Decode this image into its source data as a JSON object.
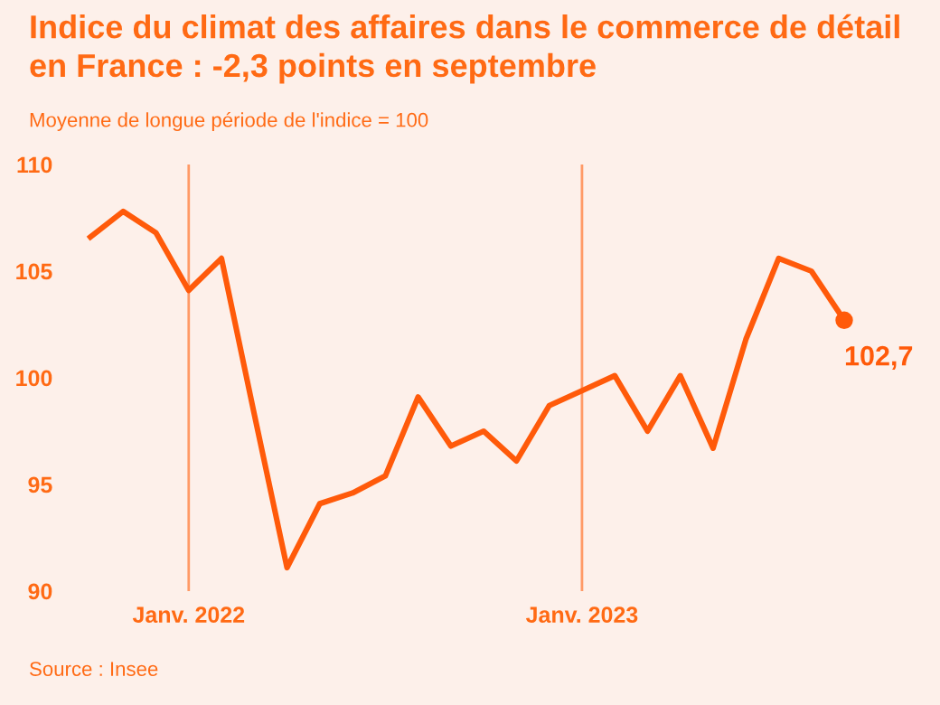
{
  "chart_data": {
    "type": "line",
    "title": "Indice du climat des affaires dans le commerce de détail en France : -2,3 points en septembre",
    "subtitle": "Moyenne de longue période de l'indice = 100",
    "categories": [
      null,
      null,
      null,
      "Janv. 2022",
      null,
      null,
      null,
      null,
      null,
      null,
      null,
      null,
      null,
      null,
      null,
      "Janv. 2023",
      null,
      null,
      null,
      null,
      null,
      null,
      null,
      null
    ],
    "series": [
      {
        "color": "#ff5a0a",
        "values": [
          106.6,
          107.8,
          106.8,
          104.1,
          105.6,
          98.3,
          91.1,
          94.1,
          94.6,
          95.4,
          99.1,
          96.8,
          97.5,
          96.1,
          98.7,
          99.4,
          100.1,
          97.5,
          100.1,
          96.7,
          101.8,
          105.6,
          105.0,
          102.7
        ],
        "value_labels": [
          null,
          null,
          null,
          null,
          null,
          null,
          null,
          null,
          null,
          null,
          null,
          null,
          null,
          null,
          null,
          null,
          null,
          null,
          null,
          null,
          null,
          null,
          null,
          "102,7"
        ]
      }
    ],
    "ylim": [
      90,
      110
    ],
    "yticks": [
      90,
      95,
      100,
      105,
      110
    ],
    "ref_lines": [
      {
        "axis": "x",
        "value": "Janv. 2022",
        "color": "#ff9a66"
      },
      {
        "axis": "x",
        "value": "Janv. 2023",
        "color": "#ff9a66"
      }
    ],
    "grid": false,
    "legend": false,
    "annotations": [
      "Source : Insee"
    ]
  }
}
